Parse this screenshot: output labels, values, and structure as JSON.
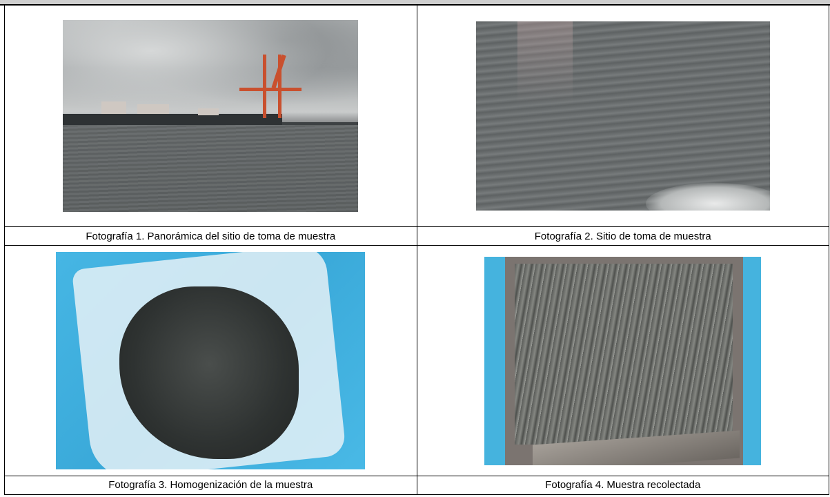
{
  "photos": [
    {
      "caption": "Fotografía 1. Panorámica del sitio de toma de muestra"
    },
    {
      "caption": "Fotografía 2. Sitio de toma de muestra"
    },
    {
      "caption": "Fotografía 3. Homogenización de la muestra"
    },
    {
      "caption": "Fotografía 4. Muestra recolectada"
    }
  ]
}
